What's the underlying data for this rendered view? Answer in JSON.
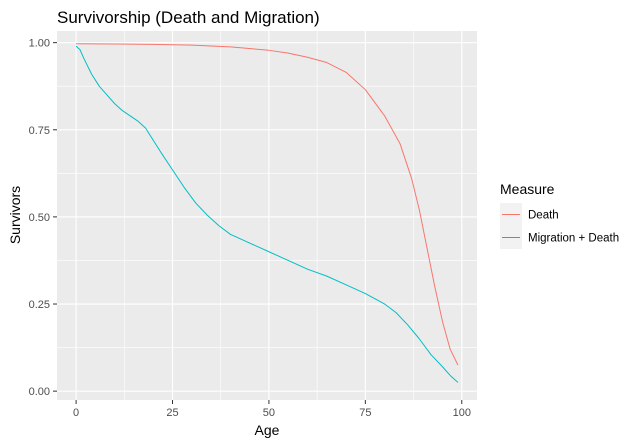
{
  "chart_data": {
    "type": "line",
    "title": "Survivorship (Death and Migration)",
    "xlabel": "Age",
    "ylabel": "Survivors",
    "xlim": [
      -4.95,
      103.95
    ],
    "ylim": [
      -0.0254,
      1.0334
    ],
    "x_ticks": [
      0,
      25,
      50,
      75,
      100
    ],
    "x_tick_labels": [
      "0",
      "25",
      "50",
      "75",
      "100"
    ],
    "y_ticks": [
      0,
      0.25,
      0.5,
      0.75,
      1
    ],
    "y_tick_labels": [
      "0.00",
      "0.25",
      "0.50",
      "0.75",
      "1.00"
    ],
    "grid": true,
    "legend": {
      "title": "Measure",
      "position": "right"
    },
    "series": [
      {
        "name": "Death",
        "color": "#F8766D",
        "points": [
          [
            0,
            0.997
          ],
          [
            10,
            0.996
          ],
          [
            20,
            0.995
          ],
          [
            30,
            0.993
          ],
          [
            40,
            0.988
          ],
          [
            50,
            0.978
          ],
          [
            55,
            0.97
          ],
          [
            60,
            0.958
          ],
          [
            65,
            0.943
          ],
          [
            70,
            0.915
          ],
          [
            75,
            0.865
          ],
          [
            80,
            0.79
          ],
          [
            84,
            0.71
          ],
          [
            87,
            0.61
          ],
          [
            89,
            0.52
          ],
          [
            91,
            0.41
          ],
          [
            93,
            0.3
          ],
          [
            95,
            0.2
          ],
          [
            97,
            0.12
          ],
          [
            99,
            0.075
          ]
        ]
      },
      {
        "name": "Migration + Death",
        "color": "#00BFC4",
        "points": [
          [
            0,
            0.99
          ],
          [
            1,
            0.98
          ],
          [
            2,
            0.955
          ],
          [
            4,
            0.91
          ],
          [
            6,
            0.875
          ],
          [
            8,
            0.85
          ],
          [
            10,
            0.825
          ],
          [
            12,
            0.805
          ],
          [
            14,
            0.79
          ],
          [
            16,
            0.775
          ],
          [
            18,
            0.755
          ],
          [
            20,
            0.72
          ],
          [
            22,
            0.685
          ],
          [
            25,
            0.635
          ],
          [
            28,
            0.585
          ],
          [
            31,
            0.54
          ],
          [
            34,
            0.505
          ],
          [
            37,
            0.475
          ],
          [
            40,
            0.45
          ],
          [
            45,
            0.425
          ],
          [
            50,
            0.4
          ],
          [
            55,
            0.375
          ],
          [
            60,
            0.35
          ],
          [
            65,
            0.33
          ],
          [
            70,
            0.305
          ],
          [
            75,
            0.28
          ],
          [
            80,
            0.25
          ],
          [
            83,
            0.225
          ],
          [
            86,
            0.19
          ],
          [
            89,
            0.15
          ],
          [
            92,
            0.105
          ],
          [
            95,
            0.07
          ],
          [
            97,
            0.045
          ],
          [
            99,
            0.025
          ]
        ]
      }
    ]
  }
}
